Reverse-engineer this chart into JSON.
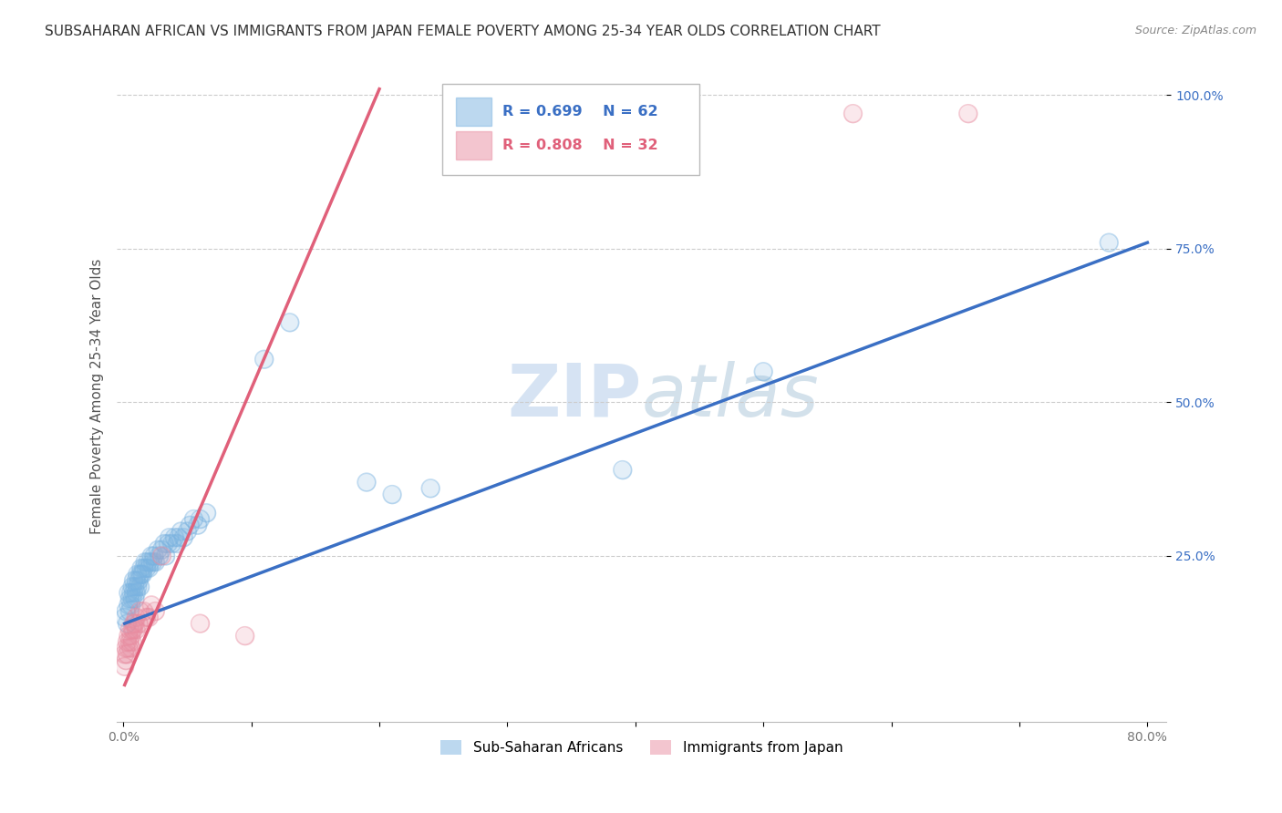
{
  "title": "SUBSAHARAN AFRICAN VS IMMIGRANTS FROM JAPAN FEMALE POVERTY AMONG 25-34 YEAR OLDS CORRELATION CHART",
  "source": "Source: ZipAtlas.com",
  "ylabel": "Female Poverty Among 25-34 Year Olds",
  "xlim": [
    -0.005,
    0.815
  ],
  "ylim": [
    -0.02,
    1.04
  ],
  "xticks": [
    0.0,
    0.1,
    0.2,
    0.3,
    0.4,
    0.5,
    0.6,
    0.7,
    0.8
  ],
  "xticklabels": [
    "0.0%",
    "",
    "",
    "",
    "",
    "",
    "",
    "",
    "80.0%"
  ],
  "ytick_positions": [
    0.25,
    0.5,
    0.75,
    1.0
  ],
  "yticklabels": [
    "25.0%",
    "50.0%",
    "75.0%",
    "100.0%"
  ],
  "blue_R": 0.699,
  "blue_N": 62,
  "pink_R": 0.808,
  "pink_N": 32,
  "blue_color": "#7ab3e0",
  "pink_color": "#e88ca0",
  "blue_line_color": "#3a6fc4",
  "pink_line_color": "#e0607a",
  "watermark_color": "#c5d8ee",
  "legend_label_blue": "Sub-Saharan Africans",
  "legend_label_pink": "Immigrants from Japan",
  "blue_scatter": [
    [
      0.001,
      0.15
    ],
    [
      0.002,
      0.16
    ],
    [
      0.003,
      0.14
    ],
    [
      0.004,
      0.17
    ],
    [
      0.004,
      0.19
    ],
    [
      0.005,
      0.16
    ],
    [
      0.005,
      0.18
    ],
    [
      0.006,
      0.17
    ],
    [
      0.006,
      0.19
    ],
    [
      0.007,
      0.18
    ],
    [
      0.007,
      0.2
    ],
    [
      0.008,
      0.19
    ],
    [
      0.008,
      0.21
    ],
    [
      0.009,
      0.18
    ],
    [
      0.009,
      0.2
    ],
    [
      0.01,
      0.19
    ],
    [
      0.01,
      0.21
    ],
    [
      0.011,
      0.2
    ],
    [
      0.011,
      0.22
    ],
    [
      0.012,
      0.21
    ],
    [
      0.013,
      0.22
    ],
    [
      0.013,
      0.2
    ],
    [
      0.014,
      0.22
    ],
    [
      0.014,
      0.23
    ],
    [
      0.015,
      0.22
    ],
    [
      0.016,
      0.23
    ],
    [
      0.017,
      0.24
    ],
    [
      0.018,
      0.23
    ],
    [
      0.019,
      0.24
    ],
    [
      0.02,
      0.23
    ],
    [
      0.021,
      0.24
    ],
    [
      0.022,
      0.25
    ],
    [
      0.023,
      0.24
    ],
    [
      0.024,
      0.25
    ],
    [
      0.025,
      0.24
    ],
    [
      0.027,
      0.26
    ],
    [
      0.028,
      0.25
    ],
    [
      0.03,
      0.26
    ],
    [
      0.032,
      0.27
    ],
    [
      0.033,
      0.25
    ],
    [
      0.035,
      0.27
    ],
    [
      0.036,
      0.28
    ],
    [
      0.038,
      0.27
    ],
    [
      0.04,
      0.28
    ],
    [
      0.042,
      0.27
    ],
    [
      0.043,
      0.28
    ],
    [
      0.045,
      0.29
    ],
    [
      0.047,
      0.28
    ],
    [
      0.05,
      0.29
    ],
    [
      0.052,
      0.3
    ],
    [
      0.055,
      0.31
    ],
    [
      0.058,
      0.3
    ],
    [
      0.06,
      0.31
    ],
    [
      0.065,
      0.32
    ],
    [
      0.11,
      0.57
    ],
    [
      0.13,
      0.63
    ],
    [
      0.19,
      0.37
    ],
    [
      0.21,
      0.35
    ],
    [
      0.24,
      0.36
    ],
    [
      0.39,
      0.39
    ],
    [
      0.5,
      0.55
    ],
    [
      0.77,
      0.76
    ]
  ],
  "pink_scatter": [
    [
      0.001,
      0.07
    ],
    [
      0.001,
      0.09
    ],
    [
      0.002,
      0.08
    ],
    [
      0.002,
      0.1
    ],
    [
      0.003,
      0.09
    ],
    [
      0.003,
      0.11
    ],
    [
      0.004,
      0.1
    ],
    [
      0.004,
      0.12
    ],
    [
      0.005,
      0.11
    ],
    [
      0.005,
      0.13
    ],
    [
      0.006,
      0.12
    ],
    [
      0.006,
      0.1
    ],
    [
      0.007,
      0.13
    ],
    [
      0.007,
      0.11
    ],
    [
      0.008,
      0.13
    ],
    [
      0.008,
      0.14
    ],
    [
      0.009,
      0.14
    ],
    [
      0.01,
      0.15
    ],
    [
      0.01,
      0.13
    ],
    [
      0.012,
      0.14
    ],
    [
      0.013,
      0.16
    ],
    [
      0.015,
      0.14
    ],
    [
      0.016,
      0.16
    ],
    [
      0.018,
      0.15
    ],
    [
      0.02,
      0.15
    ],
    [
      0.022,
      0.17
    ],
    [
      0.025,
      0.16
    ],
    [
      0.03,
      0.25
    ],
    [
      0.06,
      0.14
    ],
    [
      0.095,
      0.12
    ],
    [
      0.57,
      0.97
    ],
    [
      0.66,
      0.97
    ]
  ],
  "blue_trend_x": [
    0.001,
    0.8
  ],
  "blue_trend_y": [
    0.14,
    0.76
  ],
  "pink_trend_x": [
    0.001,
    0.2
  ],
  "pink_trend_y": [
    0.04,
    1.01
  ],
  "background_color": "#ffffff",
  "title_fontsize": 11,
  "axis_label_fontsize": 11,
  "tick_fontsize": 10,
  "legend_fontsize": 11
}
